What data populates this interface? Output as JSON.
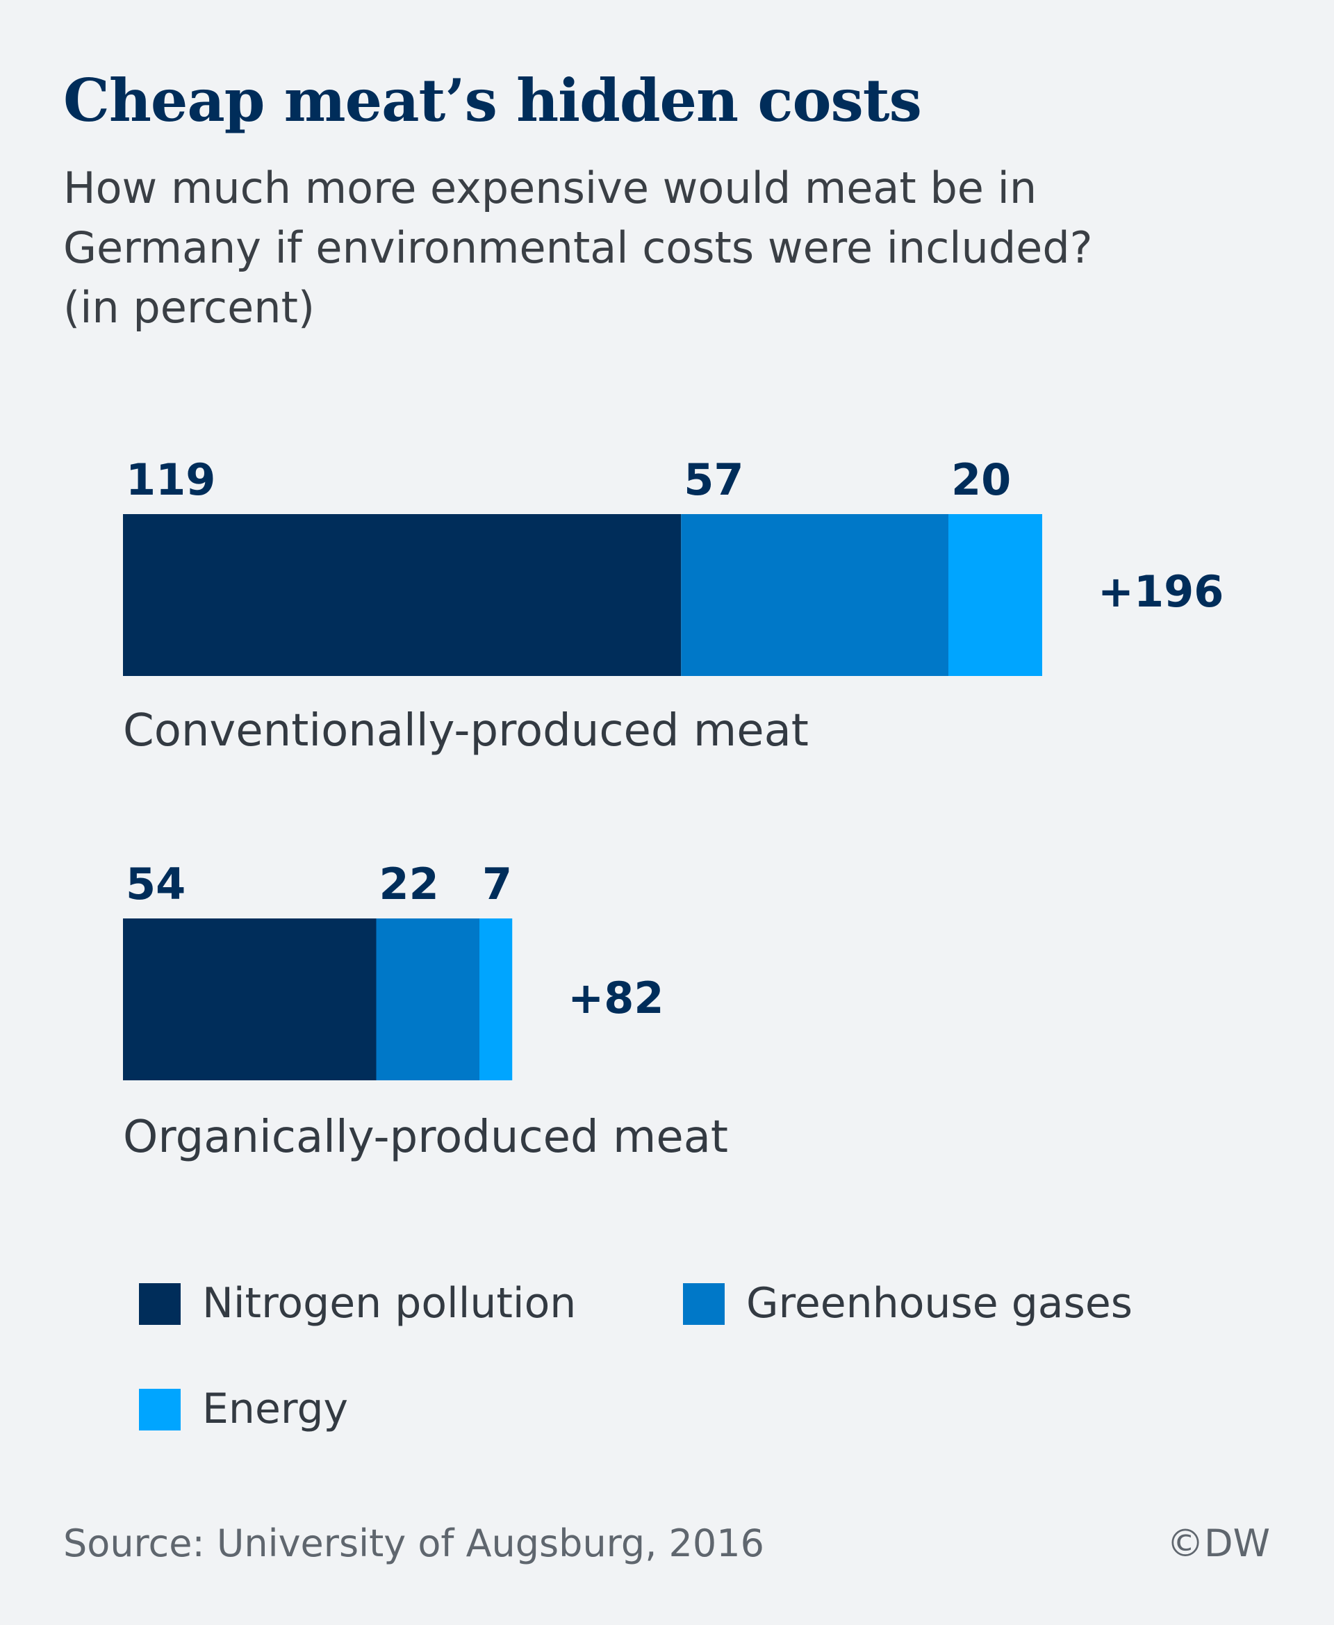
{
  "title": "Cheap meat’s hidden costs",
  "subtitle": "How much more expensive would meat be in Germany if environmental costs were included? (in percent)",
  "source": "Source: University of Augsburg, 2016",
  "credit": "©DW",
  "colors": {
    "background": "#f1f3f5",
    "nitrogen": "#002d5a",
    "greenhouse": "#0078c8",
    "energy": "#00a5ff",
    "label_text": "#002d5a"
  },
  "chart_data": {
    "type": "bar",
    "orientation": "horizontal",
    "stacked": true,
    "categories": [
      "Conventionally-produced meat",
      "Organically-produced meat"
    ],
    "series": [
      {
        "name": "Nitrogen pollution",
        "values": [
          119,
          54
        ],
        "color": "#002d5a"
      },
      {
        "name": "Greenhouse gases",
        "values": [
          57,
          22
        ],
        "color": "#0078c8"
      },
      {
        "name": "Energy",
        "values": [
          20,
          7
        ],
        "color": "#00a5ff"
      }
    ],
    "totals": [
      "+196",
      "+82"
    ],
    "legend_position": "bottom"
  }
}
